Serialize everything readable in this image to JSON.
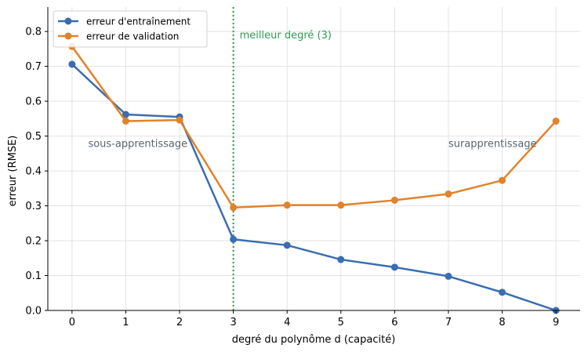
{
  "chart_data": {
    "type": "line",
    "title": "",
    "xlabel": "degré du polynôme d (capacité)",
    "ylabel": "erreur (RMSE)",
    "x": [
      0,
      1,
      2,
      3,
      4,
      5,
      6,
      7,
      8,
      9
    ],
    "xlim": [
      -0.45,
      9.45
    ],
    "ylim": [
      0,
      0.87
    ],
    "xticks": [
      0,
      1,
      2,
      3,
      4,
      5,
      6,
      7,
      8,
      9
    ],
    "xtick_labels": [
      "0",
      "1",
      "2",
      "3",
      "4",
      "5",
      "6",
      "7",
      "8",
      "9"
    ],
    "yticks": [
      0.0,
      0.1,
      0.2,
      0.3,
      0.4,
      0.5,
      0.6,
      0.7,
      0.8
    ],
    "ytick_labels": [
      "0.0",
      "0.1",
      "0.2",
      "0.3",
      "0.4",
      "0.5",
      "0.6",
      "0.7",
      "0.8"
    ],
    "grid": true,
    "legend_position": "top-left",
    "series": [
      {
        "name": "erreur d'entraînement",
        "color": "#3a6db1",
        "values": [
          0.706,
          0.562,
          0.555,
          0.204,
          0.187,
          0.146,
          0.124,
          0.098,
          0.052,
          0.0
        ]
      },
      {
        "name": "erreur de validation",
        "color": "#e1832a",
        "values": [
          0.757,
          0.543,
          0.546,
          0.295,
          0.302,
          0.302,
          0.316,
          0.334,
          0.373,
          0.543
        ]
      }
    ],
    "vline": {
      "x": 3,
      "label": "meilleur degré (3)",
      "color": "#2e9e50"
    },
    "annotations": [
      {
        "text": "sous-apprentissage",
        "x": 0.3,
        "y": 0.48,
        "color": "#5a6470"
      },
      {
        "text": "surapprentissage",
        "x": 7.0,
        "y": 0.48,
        "color": "#5a6470"
      }
    ]
  }
}
